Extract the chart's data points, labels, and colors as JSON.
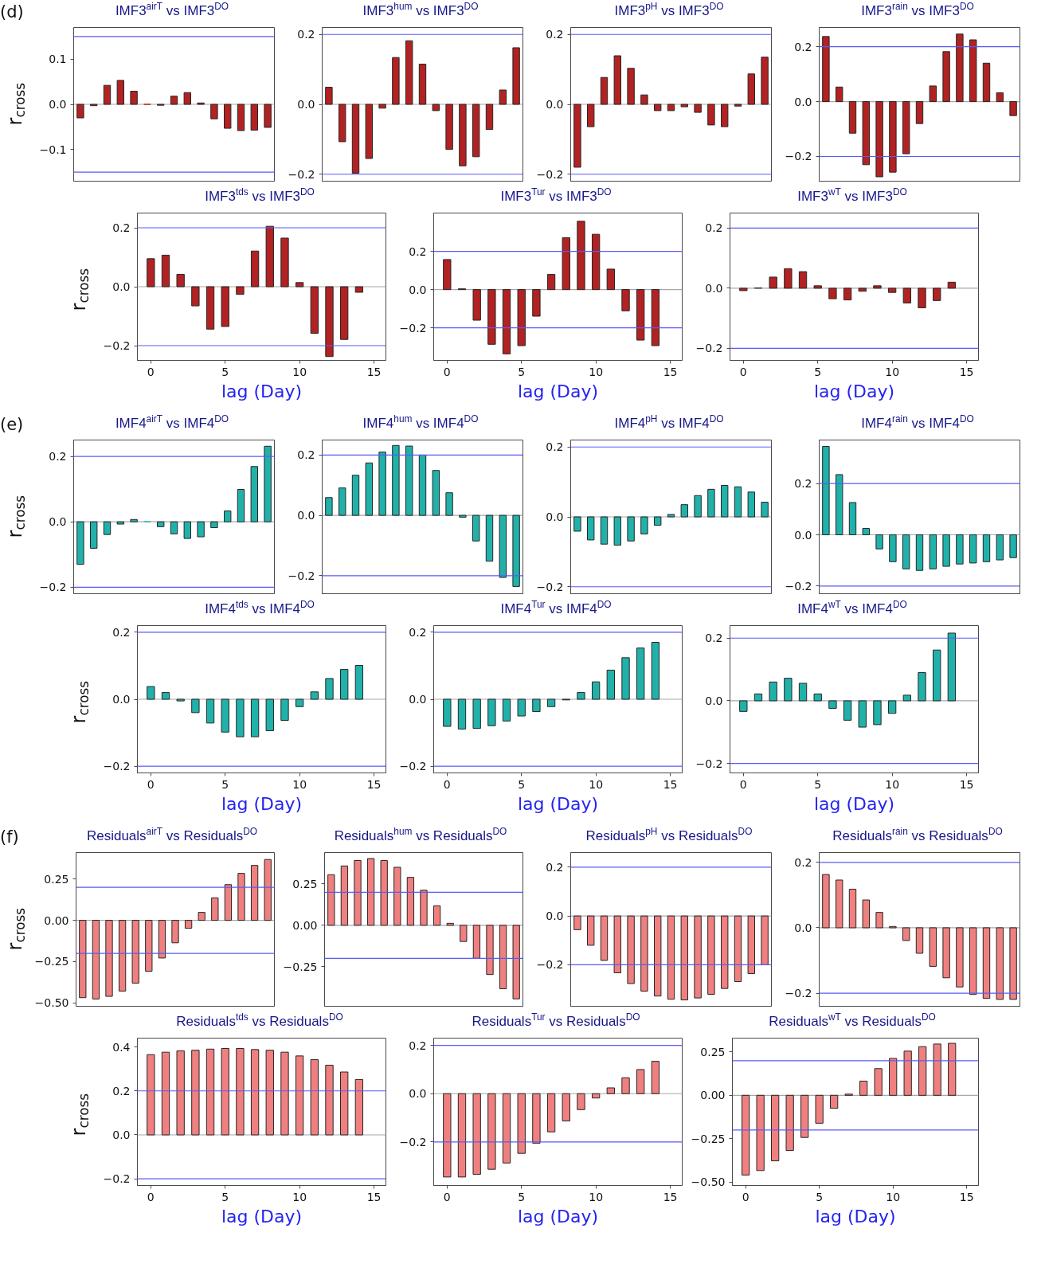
{
  "chart_data": [
    {
      "type": "bar",
      "title": "IMF3$^{airT}$ vs IMF3$^{DO}$",
      "ylabel": "r$_{cross}$",
      "annotations": [
        "(d)"
      ],
      "categories": [
        null,
        null,
        null,
        null,
        null,
        null,
        null,
        null,
        null,
        null,
        null,
        null,
        null,
        null,
        null
      ],
      "values": [
        -0.03,
        -0.003,
        0.042,
        0.053,
        0.029,
        0.0,
        -0.002,
        0.018,
        0.026,
        0.003,
        -0.032,
        -0.053,
        -0.058,
        -0.057,
        -0.051
      ],
      "color": "#b22222",
      "ylim": [
        -0.17,
        0.17
      ],
      "yticks": [
        {
          "value": -0.1,
          "label": "−0.1"
        },
        {
          "value": 0,
          "label": "0.0"
        },
        0.1
      ],
      "ref_lines": [
        {
          "axis": "y",
          "value": 0.15,
          "color": "#5a5af5"
        },
        {
          "axis": "y",
          "value": -0.15,
          "color": "#5a5af5"
        },
        {
          "axis": "y",
          "value": 0,
          "color": "#a8a8a8"
        }
      ]
    },
    {
      "type": "bar",
      "title": "IMF3$^{hum}$ vs IMF3$^{DO}$",
      "categories": [
        null,
        null,
        null,
        null,
        null,
        null,
        null,
        null,
        null,
        null,
        null,
        null,
        null,
        null,
        null
      ],
      "values": [
        0.049,
        -0.107,
        -0.197,
        -0.155,
        -0.011,
        0.134,
        0.182,
        0.115,
        -0.018,
        -0.129,
        -0.176,
        -0.15,
        -0.072,
        0.041,
        0.162
      ],
      "color": "#b22222",
      "ylim": [
        -0.22,
        0.22
      ],
      "yticks": [
        {
          "value": -0.2,
          "label": "−0.2"
        },
        {
          "value": 0,
          "label": "0.0"
        },
        0.2
      ],
      "ref_lines": [
        {
          "axis": "y",
          "value": 0.2,
          "color": "#5a5af5"
        },
        {
          "axis": "y",
          "value": -0.2,
          "color": "#5a5af5"
        },
        {
          "axis": "y",
          "value": 0,
          "color": "#a8a8a8"
        }
      ]
    },
    {
      "type": "bar",
      "title": "IMF3$^{pH}$ vs IMF3$^{DO}$",
      "categories": [
        null,
        null,
        null,
        null,
        null,
        null,
        null,
        null,
        null,
        null,
        null,
        null,
        null,
        null,
        null
      ],
      "values": [
        -0.18,
        -0.064,
        0.077,
        0.139,
        0.103,
        0.027,
        -0.018,
        -0.018,
        -0.007,
        -0.023,
        -0.059,
        -0.064,
        -0.005,
        0.087,
        0.135
      ],
      "color": "#b22222",
      "ylim": [
        -0.22,
        0.22
      ],
      "yticks": [
        {
          "value": -0.2,
          "label": "−0.2"
        },
        {
          "value": 0,
          "label": "0.0"
        },
        0.2
      ],
      "ref_lines": [
        {
          "axis": "y",
          "value": 0.2,
          "color": "#5a5af5"
        },
        {
          "axis": "y",
          "value": -0.2,
          "color": "#5a5af5"
        },
        {
          "axis": "y",
          "value": 0,
          "color": "#a8a8a8"
        }
      ]
    },
    {
      "type": "bar",
      "title": "IMF3$^{rain}$ vs IMF3$^{DO}$",
      "categories": [
        null,
        null,
        null,
        null,
        null,
        null,
        null,
        null,
        null,
        null,
        null,
        null,
        null,
        null,
        null
      ],
      "values": [
        0.237,
        0.053,
        -0.115,
        -0.23,
        -0.274,
        -0.257,
        -0.19,
        -0.08,
        0.057,
        0.182,
        0.246,
        0.225,
        0.14,
        0.032,
        -0.051
      ],
      "color": "#b22222",
      "ylim": [
        -0.29,
        0.27
      ],
      "yticks": [
        {
          "value": -0.2,
          "label": "−0.2"
        },
        {
          "value": 0,
          "label": "0.0"
        },
        0.2
      ],
      "ref_lines": [
        {
          "axis": "y",
          "value": 0.2,
          "color": "#5a5af5"
        },
        {
          "axis": "y",
          "value": -0.2,
          "color": "#5a5af5"
        },
        {
          "axis": "y",
          "value": 0,
          "color": "#a8a8a8"
        }
      ]
    },
    {
      "type": "bar",
      "title": "IMF3$^{tds}$ vs IMF3$^{DO}$",
      "ylabel": "r$_{cross}$",
      "xlabel": "lag (Day)",
      "x": [
        0,
        1,
        2,
        3,
        4,
        5,
        6,
        7,
        8,
        9,
        10,
        11,
        12,
        13,
        14
      ],
      "values": [
        0.095,
        0.107,
        0.042,
        -0.065,
        -0.144,
        -0.135,
        -0.026,
        0.121,
        0.205,
        0.165,
        0.014,
        -0.158,
        -0.237,
        -0.179,
        -0.019
      ],
      "color": "#b22222",
      "xlim": [
        -0.9,
        15.8
      ],
      "ylim": [
        -0.25,
        0.25
      ],
      "xticks": [
        0,
        5,
        10,
        15
      ],
      "yticks": [
        {
          "value": -0.2,
          "label": "−0.2"
        },
        {
          "value": 0,
          "label": "0.0"
        },
        0.2
      ],
      "ref_lines": [
        {
          "axis": "y",
          "value": 0.2,
          "color": "#5a5af5"
        },
        {
          "axis": "y",
          "value": -0.2,
          "color": "#5a5af5"
        },
        {
          "axis": "y",
          "value": 0,
          "color": "#a8a8a8"
        }
      ]
    },
    {
      "type": "bar",
      "title": "IMF3$^{Tur}$ vs IMF3$^{DO}$",
      "xlabel": "lag (Day)",
      "x": [
        0,
        1,
        2,
        3,
        4,
        5,
        6,
        7,
        8,
        9,
        10,
        11,
        12,
        13,
        14
      ],
      "values": [
        0.157,
        0.004,
        -0.16,
        -0.286,
        -0.336,
        -0.293,
        -0.139,
        0.079,
        0.271,
        0.357,
        0.289,
        0.107,
        -0.111,
        -0.264,
        -0.293
      ],
      "color": "#b22222",
      "xlim": [
        -0.9,
        15.8
      ],
      "ylim": [
        -0.37,
        0.4
      ],
      "xticks": [
        0,
        5,
        10,
        15
      ],
      "yticks": [
        {
          "value": -0.2,
          "label": "−0.2"
        },
        {
          "value": 0,
          "label": "0.0"
        },
        0.2
      ],
      "ref_lines": [
        {
          "axis": "y",
          "value": 0.2,
          "color": "#5a5af5"
        },
        {
          "axis": "y",
          "value": -0.2,
          "color": "#5a5af5"
        },
        {
          "axis": "y",
          "value": 0,
          "color": "#a8a8a8"
        }
      ]
    },
    {
      "type": "bar",
      "title": "IMF3$^{wT}$ vs IMF3$^{DO}$",
      "xlabel": "lag (Day)",
      "x": [
        0,
        1,
        2,
        3,
        4,
        5,
        6,
        7,
        8,
        9,
        10,
        11,
        12,
        13,
        14
      ],
      "values": [
        -0.008,
        0.001,
        0.037,
        0.065,
        0.055,
        0.008,
        -0.035,
        -0.039,
        -0.01,
        0.008,
        -0.014,
        -0.049,
        -0.065,
        -0.041,
        0.02
      ],
      "color": "#b22222",
      "xlim": [
        -0.9,
        15.8
      ],
      "ylim": [
        -0.24,
        0.25
      ],
      "xticks": [
        0,
        5,
        10,
        15
      ],
      "yticks": [
        {
          "value": -0.2,
          "label": "−0.2"
        },
        {
          "value": 0,
          "label": "0.0"
        },
        0.2
      ],
      "ref_lines": [
        {
          "axis": "y",
          "value": 0.2,
          "color": "#5a5af5"
        },
        {
          "axis": "y",
          "value": -0.2,
          "color": "#5a5af5"
        },
        {
          "axis": "y",
          "value": 0,
          "color": "#a8a8a8"
        }
      ]
    },
    {
      "type": "bar",
      "title": "IMF4$^{airT}$ vs IMF4$^{DO}$",
      "ylabel": "r$_{cross}$",
      "annotations": [
        "(e)"
      ],
      "categories": [
        null,
        null,
        null,
        null,
        null,
        null,
        null,
        null,
        null,
        null,
        null,
        null,
        null,
        null,
        null
      ],
      "values": [
        -0.13,
        -0.081,
        -0.039,
        -0.007,
        0.007,
        0.0,
        -0.015,
        -0.037,
        -0.051,
        -0.046,
        -0.018,
        0.033,
        0.099,
        0.169,
        0.231
      ],
      "color": "#20b2aa",
      "ylim": [
        -0.22,
        0.25
      ],
      "yticks": [
        {
          "value": -0.2,
          "label": "−0.2"
        },
        {
          "value": 0,
          "label": "0.0"
        },
        0.2
      ],
      "ref_lines": [
        {
          "axis": "y",
          "value": 0.2,
          "color": "#5a5af5"
        },
        {
          "axis": "y",
          "value": -0.2,
          "color": "#5a5af5"
        },
        {
          "axis": "y",
          "value": 0,
          "color": "#a8a8a8"
        }
      ]
    },
    {
      "type": "bar",
      "title": "IMF4$^{hum}$ vs IMF4$^{DO}$",
      "categories": [
        null,
        null,
        null,
        null,
        null,
        null,
        null,
        null,
        null,
        null,
        null,
        null,
        null,
        null,
        null
      ],
      "values": [
        0.059,
        0.091,
        0.133,
        0.174,
        0.21,
        0.232,
        0.23,
        0.2,
        0.149,
        0.075,
        -0.006,
        -0.085,
        -0.152,
        -0.206,
        -0.236
      ],
      "color": "#20b2aa",
      "ylim": [
        -0.26,
        0.25
      ],
      "yticks": [
        {
          "value": -0.2,
          "label": "−0.2"
        },
        {
          "value": 0,
          "label": "0.0"
        },
        0.2
      ],
      "ref_lines": [
        {
          "axis": "y",
          "value": 0.2,
          "color": "#5a5af5"
        },
        {
          "axis": "y",
          "value": -0.2,
          "color": "#5a5af5"
        },
        {
          "axis": "y",
          "value": 0,
          "color": "#a8a8a8"
        }
      ]
    },
    {
      "type": "bar",
      "title": "IMF4$^{pH}$ vs IMF4$^{DO}$",
      "categories": [
        null,
        null,
        null,
        null,
        null,
        null,
        null,
        null,
        null,
        null,
        null,
        null,
        null,
        null,
        null
      ],
      "values": [
        -0.041,
        -0.066,
        -0.078,
        -0.081,
        -0.069,
        -0.049,
        -0.024,
        0.007,
        0.035,
        0.061,
        0.079,
        0.09,
        0.086,
        0.071,
        0.042
      ],
      "color": "#20b2aa",
      "ylim": [
        -0.22,
        0.22
      ],
      "yticks": [
        {
          "value": -0.2,
          "label": "−0.2"
        },
        {
          "value": 0,
          "label": "0.0"
        },
        0.2
      ],
      "ref_lines": [
        {
          "axis": "y",
          "value": 0.2,
          "color": "#5a5af5"
        },
        {
          "axis": "y",
          "value": -0.2,
          "color": "#5a5af5"
        },
        {
          "axis": "y",
          "value": 0,
          "color": "#a8a8a8"
        }
      ]
    },
    {
      "type": "bar",
      "title": "IMF4$^{rain}$ vs IMF4$^{DO}$",
      "categories": [
        null,
        null,
        null,
        null,
        null,
        null,
        null,
        null,
        null,
        null,
        null,
        null,
        null,
        null,
        null
      ],
      "values": [
        0.345,
        0.235,
        0.126,
        0.025,
        -0.055,
        -0.105,
        -0.133,
        -0.139,
        -0.133,
        -0.123,
        -0.114,
        -0.11,
        -0.105,
        -0.098,
        -0.089
      ],
      "color": "#20b2aa",
      "ylim": [
        -0.23,
        0.37
      ],
      "yticks": [
        {
          "value": -0.2,
          "label": "−0.2"
        },
        {
          "value": 0,
          "label": "0.0"
        },
        0.2
      ],
      "ref_lines": [
        {
          "axis": "y",
          "value": 0.2,
          "color": "#5a5af5"
        },
        {
          "axis": "y",
          "value": -0.2,
          "color": "#5a5af5"
        },
        {
          "axis": "y",
          "value": 0,
          "color": "#a8a8a8"
        }
      ]
    },
    {
      "type": "bar",
      "title": "IMF4$^{tds}$ vs IMF4$^{DO}$",
      "ylabel": "r$_{cross}$",
      "xlabel": "lag (Day)",
      "x": [
        0,
        1,
        2,
        3,
        4,
        5,
        6,
        7,
        8,
        9,
        10,
        11,
        12,
        13,
        14
      ],
      "values": [
        0.038,
        0.02,
        -0.005,
        -0.04,
        -0.071,
        -0.098,
        -0.112,
        -0.112,
        -0.094,
        -0.063,
        -0.022,
        0.022,
        0.062,
        0.089,
        0.101
      ],
      "color": "#20b2aa",
      "xlim": [
        -0.9,
        15.8
      ],
      "ylim": [
        -0.22,
        0.22
      ],
      "xticks": [
        0,
        5,
        10,
        15
      ],
      "yticks": [
        {
          "value": -0.2,
          "label": "−0.2"
        },
        {
          "value": 0,
          "label": "0.0"
        },
        0.2
      ],
      "ref_lines": [
        {
          "axis": "y",
          "value": 0.2,
          "color": "#5a5af5"
        },
        {
          "axis": "y",
          "value": -0.2,
          "color": "#5a5af5"
        },
        {
          "axis": "y",
          "value": 0,
          "color": "#a8a8a8"
        }
      ]
    },
    {
      "type": "bar",
      "title": "IMF4$^{Tur}$ vs IMF4$^{DO}$",
      "xlabel": "lag (Day)",
      "x": [
        0,
        1,
        2,
        3,
        4,
        5,
        6,
        7,
        8,
        9,
        10,
        11,
        12,
        13,
        14
      ],
      "values": [
        -0.081,
        -0.089,
        -0.087,
        -0.079,
        -0.065,
        -0.05,
        -0.037,
        -0.022,
        -0.002,
        0.02,
        0.052,
        0.087,
        0.124,
        0.153,
        0.17
      ],
      "color": "#20b2aa",
      "xlim": [
        -0.9,
        15.8
      ],
      "ylim": [
        -0.22,
        0.22
      ],
      "xticks": [
        0,
        5,
        10,
        15
      ],
      "yticks": [
        {
          "value": -0.2,
          "label": "−0.2"
        },
        {
          "value": 0,
          "label": "0.0"
        },
        0.2
      ],
      "ref_lines": [
        {
          "axis": "y",
          "value": 0.2,
          "color": "#5a5af5"
        },
        {
          "axis": "y",
          "value": -0.2,
          "color": "#5a5af5"
        },
        {
          "axis": "y",
          "value": 0,
          "color": "#a8a8a8"
        }
      ]
    },
    {
      "type": "bar",
      "title": "IMF4$^{wT}$ vs IMF4$^{DO}$",
      "xlabel": "lag (Day)",
      "x": [
        0,
        1,
        2,
        3,
        4,
        5,
        6,
        7,
        8,
        9,
        10,
        11,
        12,
        13,
        14
      ],
      "values": [
        -0.034,
        0.022,
        0.06,
        0.072,
        0.056,
        0.022,
        -0.024,
        -0.062,
        -0.084,
        -0.076,
        -0.04,
        0.018,
        0.09,
        0.162,
        0.216
      ],
      "color": "#20b2aa",
      "xlim": [
        -0.9,
        15.8
      ],
      "ylim": [
        -0.23,
        0.24
      ],
      "xticks": [
        0,
        5,
        10,
        15
      ],
      "yticks": [
        {
          "value": -0.2,
          "label": "−0.2"
        },
        {
          "value": 0,
          "label": "0.0"
        },
        0.2
      ],
      "ref_lines": [
        {
          "axis": "y",
          "value": 0.2,
          "color": "#5a5af5"
        },
        {
          "axis": "y",
          "value": -0.2,
          "color": "#5a5af5"
        },
        {
          "axis": "y",
          "value": 0,
          "color": "#a8a8a8"
        }
      ]
    },
    {
      "type": "bar",
      "title": "Residuals$^{airT}$ vs Residuals$^{DO}$",
      "ylabel": "r$_{cross}$",
      "annotations": [
        "(f)"
      ],
      "categories": [
        null,
        null,
        null,
        null,
        null,
        null,
        null,
        null,
        null,
        null,
        null,
        null,
        null,
        null,
        null
      ],
      "values": [
        -0.468,
        -0.476,
        -0.46,
        -0.428,
        -0.38,
        -0.308,
        -0.228,
        -0.136,
        -0.048,
        0.048,
        0.136,
        0.216,
        0.284,
        0.332,
        0.368
      ],
      "color": "#f08080",
      "ylim": [
        -0.52,
        0.41
      ],
      "yticks": [
        {
          "value": -0.5,
          "label": "−0.50"
        },
        {
          "value": -0.25,
          "label": "−0.25"
        },
        {
          "value": 0,
          "label": "0.00"
        },
        0.25
      ],
      "ref_lines": [
        {
          "axis": "y",
          "value": 0.2,
          "color": "#5a5af5"
        },
        {
          "axis": "y",
          "value": -0.2,
          "color": "#5a5af5"
        },
        {
          "axis": "y",
          "value": 0,
          "color": "#a8a8a8"
        }
      ]
    },
    {
      "type": "bar",
      "title": "Residuals$^{hum}$ vs Residuals$^{DO}$",
      "categories": [
        null,
        null,
        null,
        null,
        null,
        null,
        null,
        null,
        null,
        null,
        null,
        null,
        null,
        null,
        null
      ],
      "values": [
        0.306,
        0.359,
        0.392,
        0.404,
        0.392,
        0.351,
        0.29,
        0.212,
        0.118,
        0.012,
        -0.098,
        -0.2,
        -0.298,
        -0.384,
        -0.445
      ],
      "color": "#f08080",
      "ylim": [
        -0.49,
        0.44
      ],
      "yticks": [
        {
          "value": -0.25,
          "label": "−0.25"
        },
        {
          "value": 0,
          "label": "0.00"
        },
        0.25
      ],
      "ref_lines": [
        {
          "axis": "y",
          "value": 0.2,
          "color": "#5a5af5"
        },
        {
          "axis": "y",
          "value": -0.2,
          "color": "#5a5af5"
        },
        {
          "axis": "y",
          "value": 0,
          "color": "#a8a8a8"
        }
      ]
    },
    {
      "type": "bar",
      "title": "Residuals$^{pH}$ vs Residuals$^{DO}$",
      "categories": [
        null,
        null,
        null,
        null,
        null,
        null,
        null,
        null,
        null,
        null,
        null,
        null,
        null,
        null,
        null
      ],
      "values": [
        -0.056,
        -0.12,
        -0.182,
        -0.233,
        -0.277,
        -0.308,
        -0.328,
        -0.341,
        -0.344,
        -0.336,
        -0.321,
        -0.297,
        -0.269,
        -0.236,
        -0.2
      ],
      "color": "#f08080",
      "ylim": [
        -0.37,
        0.26
      ],
      "yticks": [
        {
          "value": -0.2,
          "label": "−0.2"
        },
        {
          "value": 0,
          "label": "0.0"
        },
        0.2
      ],
      "ref_lines": [
        {
          "axis": "y",
          "value": 0.2,
          "color": "#5a5af5"
        },
        {
          "axis": "y",
          "value": -0.2,
          "color": "#5a5af5"
        },
        {
          "axis": "y",
          "value": 0,
          "color": "#a8a8a8"
        }
      ]
    },
    {
      "type": "bar",
      "title": "Residuals$^{rain}$ vs Residuals$^{DO}$",
      "categories": [
        null,
        null,
        null,
        null,
        null,
        null,
        null,
        null,
        null,
        null,
        null,
        null,
        null,
        null,
        null
      ],
      "values": [
        0.163,
        0.146,
        0.118,
        0.085,
        0.047,
        0.004,
        -0.039,
        -0.078,
        -0.118,
        -0.153,
        -0.181,
        -0.204,
        -0.216,
        -0.219,
        -0.219
      ],
      "color": "#f08080",
      "ylim": [
        -0.24,
        0.23
      ],
      "yticks": [
        {
          "value": -0.2,
          "label": "−0.2"
        },
        {
          "value": 0,
          "label": "0.0"
        },
        0.2
      ],
      "ref_lines": [
        {
          "axis": "y",
          "value": 0.2,
          "color": "#5a5af5"
        },
        {
          "axis": "y",
          "value": -0.2,
          "color": "#5a5af5"
        },
        {
          "axis": "y",
          "value": 0,
          "color": "#a8a8a8"
        }
      ]
    },
    {
      "type": "bar",
      "title": "Residuals$^{tds}$ vs Residuals$^{DO}$",
      "ylabel": "r$_{cross}$",
      "xlabel": "lag (Day)",
      "x": [
        0,
        1,
        2,
        3,
        4,
        5,
        6,
        7,
        8,
        9,
        10,
        11,
        12,
        13,
        14
      ],
      "values": [
        0.365,
        0.376,
        0.382,
        0.385,
        0.39,
        0.393,
        0.393,
        0.388,
        0.385,
        0.376,
        0.359,
        0.342,
        0.317,
        0.286,
        0.252
      ],
      "color": "#f08080",
      "xlim": [
        -0.9,
        15.8
      ],
      "ylim": [
        -0.23,
        0.44
      ],
      "xticks": [
        0,
        5,
        10,
        15
      ],
      "yticks": [
        {
          "value": -0.2,
          "label": "−0.2"
        },
        {
          "value": 0,
          "label": "0.0"
        },
        0.2,
        0.4
      ],
      "ref_lines": [
        {
          "axis": "y",
          "value": 0.2,
          "color": "#5a5af5"
        },
        {
          "axis": "y",
          "value": -0.2,
          "color": "#5a5af5"
        },
        {
          "axis": "y",
          "value": 0,
          "color": "#a8a8a8"
        }
      ]
    },
    {
      "type": "bar",
      "title": "Residuals$^{Tur}$ vs Residuals$^{DO}$",
      "xlabel": "lag (Day)",
      "x": [
        0,
        1,
        2,
        3,
        4,
        5,
        6,
        7,
        8,
        9,
        10,
        11,
        12,
        13,
        14
      ],
      "values": [
        -0.345,
        -0.345,
        -0.334,
        -0.313,
        -0.287,
        -0.247,
        -0.205,
        -0.158,
        -0.113,
        -0.066,
        -0.018,
        0.024,
        0.066,
        0.1,
        0.134
      ],
      "color": "#f08080",
      "xlim": [
        -0.9,
        15.8
      ],
      "ylim": [
        -0.38,
        0.23
      ],
      "xticks": [
        0,
        5,
        10,
        15
      ],
      "yticks": [
        {
          "value": -0.2,
          "label": "−0.2"
        },
        {
          "value": 0,
          "label": "0.0"
        },
        0.2
      ],
      "ref_lines": [
        {
          "axis": "y",
          "value": 0.2,
          "color": "#5a5af5"
        },
        {
          "axis": "y",
          "value": -0.2,
          "color": "#5a5af5"
        },
        {
          "axis": "y",
          "value": 0,
          "color": "#a8a8a8"
        }
      ]
    },
    {
      "type": "bar",
      "title": "Residuals$^{wT}$ vs Residuals$^{DO}$",
      "xlabel": "lag (Day)",
      "x": [
        0,
        1,
        2,
        3,
        4,
        5,
        6,
        7,
        8,
        9,
        10,
        11,
        12,
        13,
        14
      ],
      "values": [
        -0.46,
        -0.434,
        -0.378,
        -0.318,
        -0.243,
        -0.161,
        -0.075,
        0.007,
        0.082,
        0.154,
        0.213,
        0.255,
        0.281,
        0.296,
        0.3
      ],
      "color": "#f08080",
      "xlim": [
        -0.9,
        15.8
      ],
      "ylim": [
        -0.52,
        0.33
      ],
      "xticks": [
        0,
        5,
        10,
        15
      ],
      "yticks": [
        {
          "value": -0.5,
          "label": "−0.50"
        },
        {
          "value": -0.25,
          "label": "−0.25"
        },
        {
          "value": 0,
          "label": "0.00"
        },
        0.25
      ],
      "ref_lines": [
        {
          "axis": "y",
          "value": 0.2,
          "color": "#5a5af5"
        },
        {
          "axis": "y",
          "value": -0.2,
          "color": "#5a5af5"
        },
        {
          "axis": "y",
          "value": 0,
          "color": "#a8a8a8"
        }
      ]
    }
  ]
}
